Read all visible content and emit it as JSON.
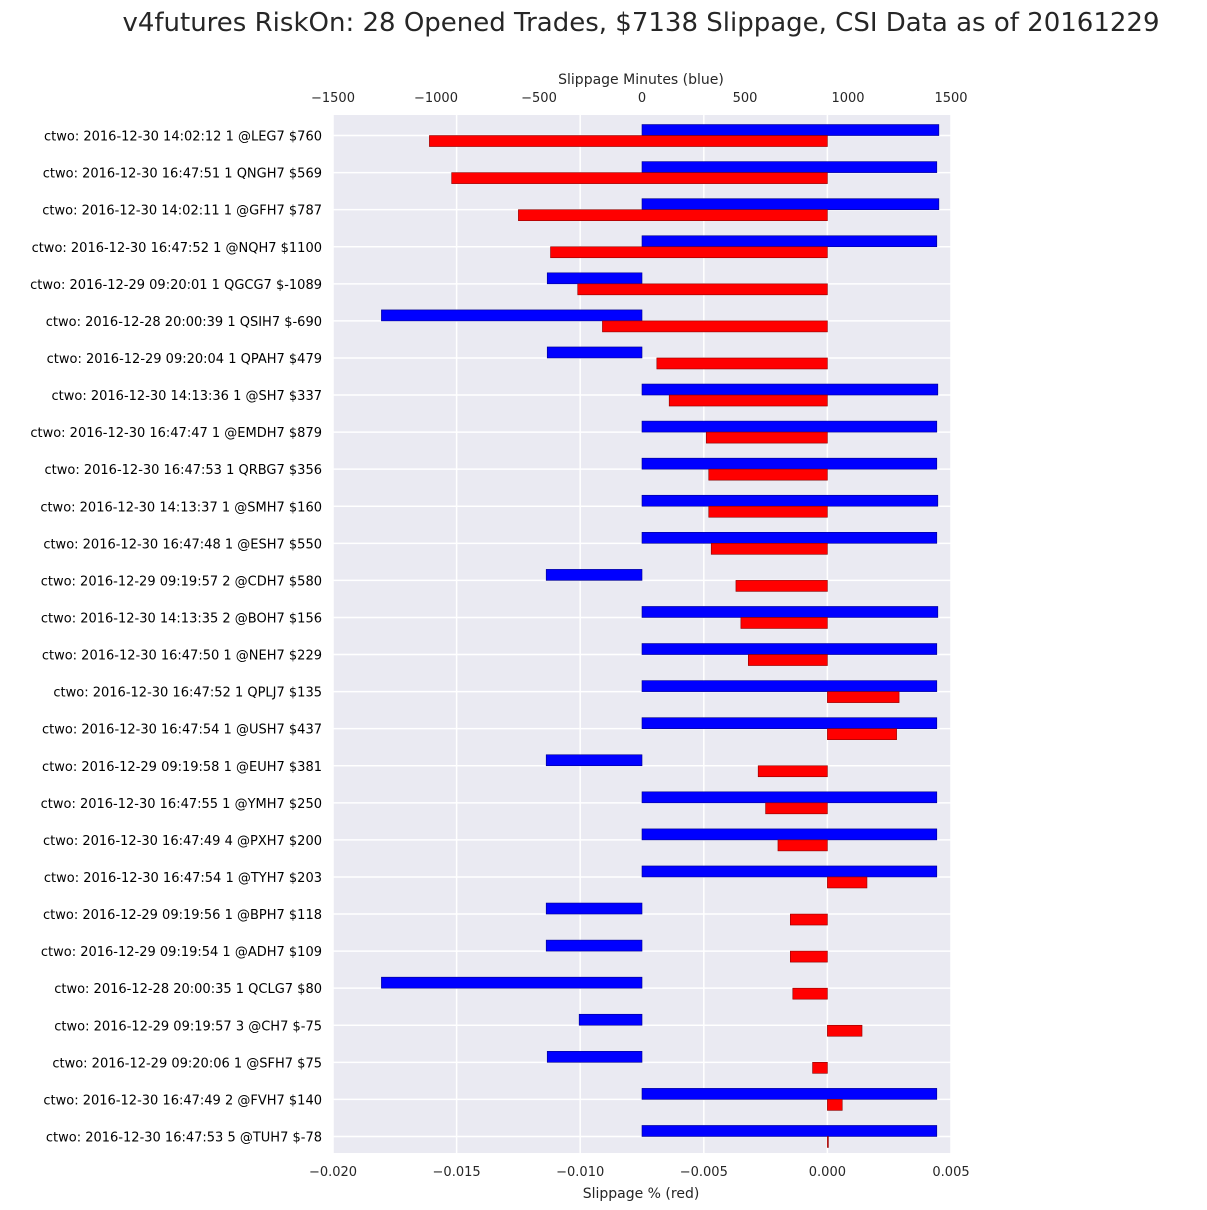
{
  "chart_data": {
    "type": "bar",
    "orientation": "horizontal",
    "title": "v4futures RiskOn: 28 Opened Trades, $7138 Slippage, CSI Data as of 20161229",
    "xlabel_bottom": "Slippage % (red)",
    "xlabel_top": "Slippage Minutes (blue)",
    "xlim_bottom": [
      -0.02,
      0.005
    ],
    "xlim_top": [
      -1500,
      1500
    ],
    "xticks_bottom": [
      "−0.020",
      "−0.015",
      "−0.010",
      "−0.005",
      "0.000",
      "0.005"
    ],
    "xticks_top": [
      "−1500",
      "−1000",
      "−500",
      "0",
      "500",
      "1000",
      "1500"
    ],
    "grid": true,
    "colors": {
      "red_series": "#ff0000",
      "blue_series": "#0000ff",
      "background": "#eaeaf2",
      "grid": "#ffffff"
    },
    "categories": [
      "ctwo: 2016-12-30 14:02:12 1 @LEG7 $760",
      "ctwo: 2016-12-30 16:47:51 1 QNGH7 $569",
      "ctwo: 2016-12-30 14:02:11 1 @GFH7 $787",
      "ctwo: 2016-12-30 16:47:52 1 @NQH7 $1100",
      "ctwo: 2016-12-29 09:20:01 1 QGCG7 $-1089",
      "ctwo: 2016-12-28 20:00:39 1 QSIH7 $-690",
      "ctwo: 2016-12-29 09:20:04 1 QPAH7 $479",
      "ctwo: 2016-12-30 14:13:36 1 @SH7 $337",
      "ctwo: 2016-12-30 16:47:47 1 @EMDH7 $879",
      "ctwo: 2016-12-30 16:47:53 1 QRBG7 $356",
      "ctwo: 2016-12-30 14:13:37 1 @SMH7 $160",
      "ctwo: 2016-12-30 16:47:48 1 @ESH7 $550",
      "ctwo: 2016-12-29 09:19:57 2 @CDH7 $580",
      "ctwo: 2016-12-30 14:13:35 2 @BOH7 $156",
      "ctwo: 2016-12-30 16:47:50 1 @NEH7 $229",
      "ctwo: 2016-12-30 16:47:52 1 QPLJ7 $135",
      "ctwo: 2016-12-30 16:47:54 1 @USH7 $437",
      "ctwo: 2016-12-29 09:19:58 1 @EUH7 $381",
      "ctwo: 2016-12-30 16:47:55 1 @YMH7 $250",
      "ctwo: 2016-12-30 16:47:49 4 @PXH7 $200",
      "ctwo: 2016-12-30 16:47:54 1 @TYH7 $203",
      "ctwo: 2016-12-29 09:19:56 1 @BPH7 $118",
      "ctwo: 2016-12-29 09:19:54 1 @ADH7 $109",
      "ctwo: 2016-12-28 20:00:35 1 QCLG7 $80",
      "ctwo: 2016-12-29 09:19:57 3 @CH7 $-75",
      "ctwo: 2016-12-29 09:20:06 1 @SFH7 $75",
      "ctwo: 2016-12-30 16:47:49 2 @FVH7 $140",
      "ctwo: 2016-12-30 16:47:53 5 @TUH7 $-78"
    ],
    "series": [
      {
        "axis": "bottom",
        "values": [
          -0.0161,
          -0.0152,
          -0.0125,
          -0.0112,
          -0.0101,
          -0.0091,
          -0.0069,
          -0.0064,
          -0.0049,
          -0.0048,
          -0.0048,
          -0.0047,
          -0.0037,
          -0.0035,
          -0.0032,
          0.0029,
          0.0028,
          -0.0028,
          -0.0025,
          -0.002,
          0.0016,
          -0.0015,
          -0.0015,
          -0.0014,
          0.0014,
          -0.0006,
          0.0006,
          0.0
        ]
      },
      {
        "axis": "top",
        "values": [
          1441,
          1431,
          1441,
          1431,
          -460,
          -1265,
          -460,
          1436,
          1431,
          1431,
          1436,
          1431,
          -465,
          1436,
          1431,
          1431,
          1431,
          -465,
          1431,
          1431,
          1431,
          -465,
          -465,
          -1265,
          -305,
          -460,
          1431,
          1431
        ]
      }
    ]
  }
}
